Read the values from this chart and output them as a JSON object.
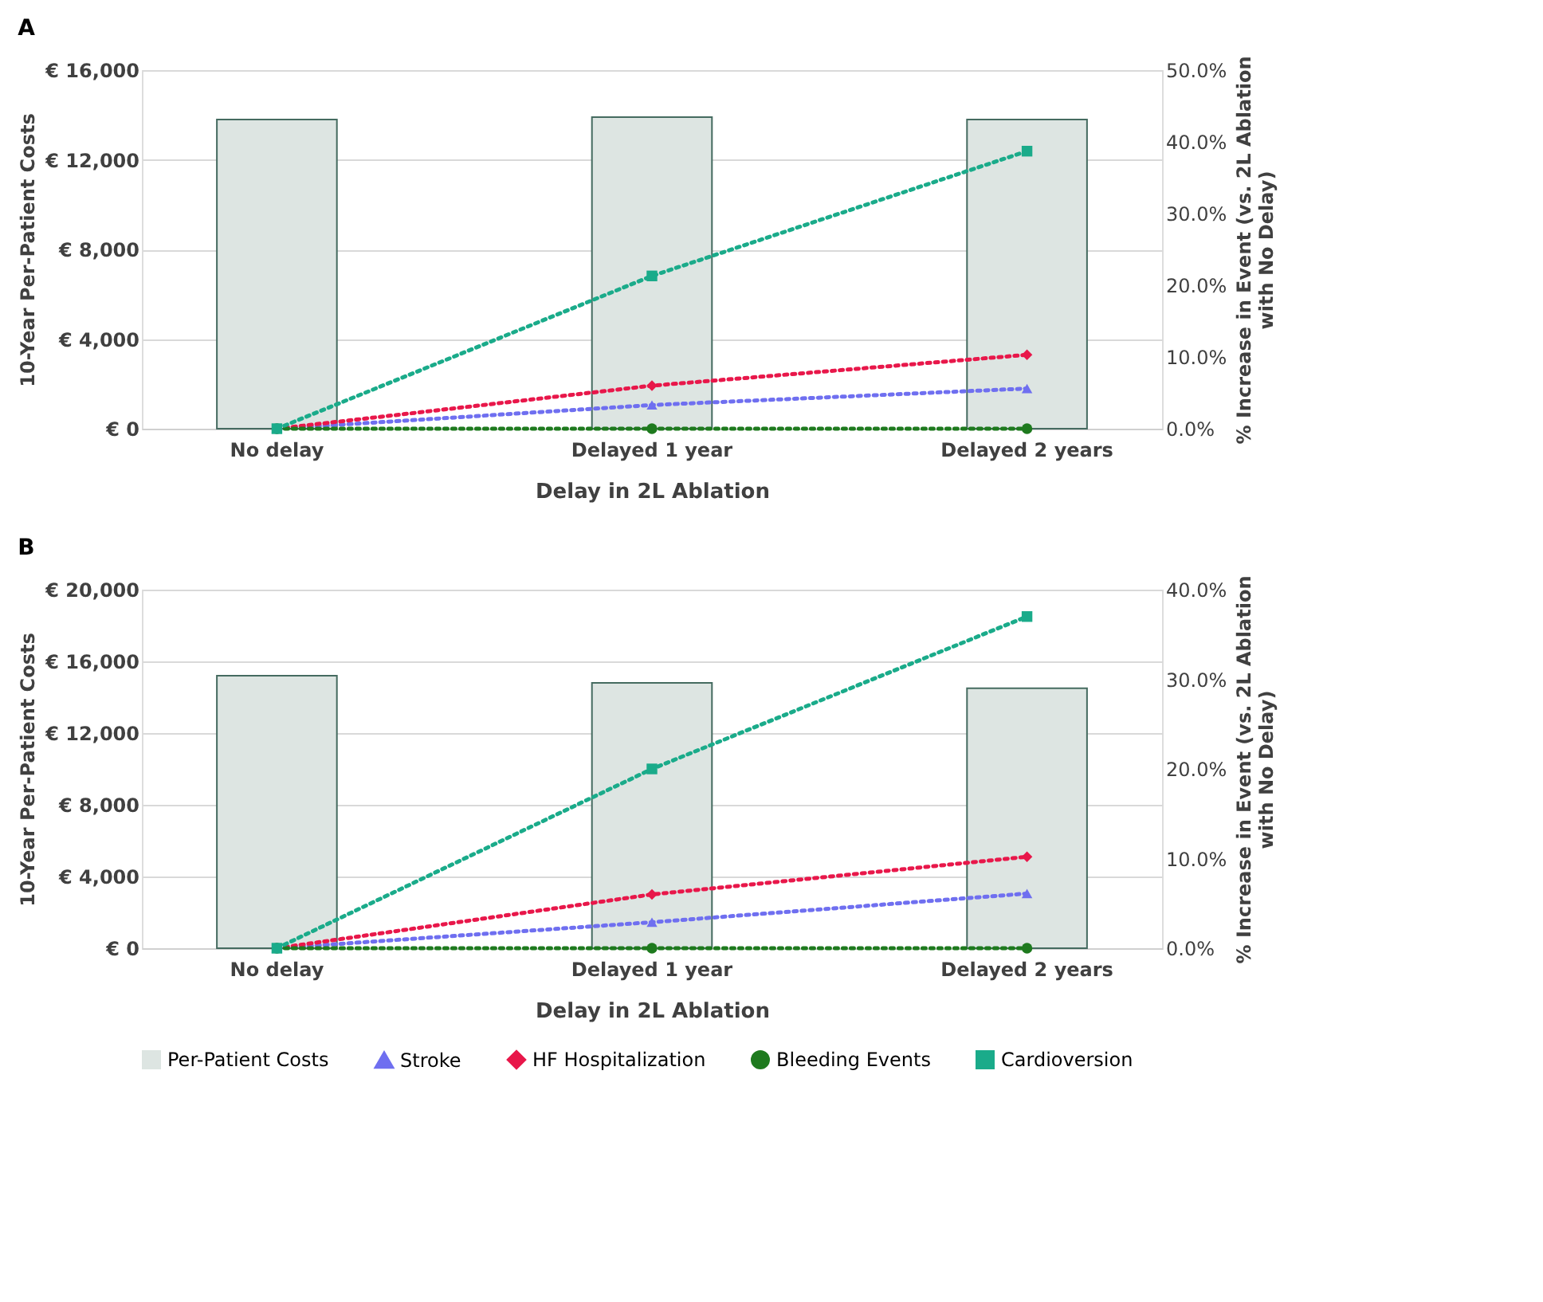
{
  "chart_data": [
    {
      "type": "bar",
      "title": "A",
      "xlabel": "Delay in 2L Ablation",
      "ylabel": "10-Year Per-Patient Costs",
      "y2label": "% Increase in Event (vs. 2L Ablation with No Delay)",
      "categories": [
        "No delay",
        "Delayed 1 year",
        "Delayed 2 years"
      ],
      "ylim": [
        0,
        16000
      ],
      "yticks": [
        {
          "value": 0,
          "label": "€ 0"
        },
        {
          "value": 4000,
          "label": "€ 4,000"
        },
        {
          "value": 8000,
          "label": "€ 8,000"
        },
        {
          "value": 12000,
          "label": "€ 12,000"
        },
        {
          "value": 16000,
          "label": "€ 16,000"
        }
      ],
      "y2lim": [
        0,
        50
      ],
      "y2ticks": [
        {
          "value": 0,
          "label": "0.0%"
        },
        {
          "value": 10,
          "label": "10.0%"
        },
        {
          "value": 20,
          "label": "20.0%"
        },
        {
          "value": 30,
          "label": "30.0%"
        },
        {
          "value": 40,
          "label": "40.0%"
        },
        {
          "value": 50,
          "label": "50.0%"
        }
      ],
      "grid": "y",
      "line_style": "dotted",
      "series": [
        {
          "color": "#dde5e2",
          "values": [
            13800,
            13900,
            13800
          ]
        },
        {
          "type": "line",
          "axis": "y2",
          "marker": "triangle",
          "color": "#6f6ff0",
          "values": [
            0,
            3.3,
            5.6
          ]
        },
        {
          "type": "line",
          "axis": "y2",
          "marker": "diamond",
          "color": "#e8174a",
          "values": [
            0,
            6.0,
            10.3
          ]
        },
        {
          "type": "line",
          "axis": "y2",
          "marker": "circle",
          "color": "#1e7a1e",
          "values": [
            0,
            0,
            0
          ]
        },
        {
          "type": "line",
          "axis": "y2",
          "marker": "square",
          "color": "#1aab8a",
          "values": [
            0,
            21.3,
            38.7
          ]
        }
      ]
    },
    {
      "type": "bar",
      "title": "B",
      "xlabel": "Delay in 2L Ablation",
      "ylabel": "10-Year Per-Patient Costs",
      "y2label": "% Increase in Event (vs. 2L Ablation with No Delay)",
      "categories": [
        "No delay",
        "Delayed 1 year",
        "Delayed 2 years"
      ],
      "ylim": [
        0,
        20000
      ],
      "yticks": [
        {
          "value": 0,
          "label": "€ 0"
        },
        {
          "value": 4000,
          "label": "€ 4,000"
        },
        {
          "value": 8000,
          "label": "€ 8,000"
        },
        {
          "value": 12000,
          "label": "€ 12,000"
        },
        {
          "value": 16000,
          "label": "€ 16,000"
        },
        {
          "value": 20000,
          "label": "€ 20,000"
        }
      ],
      "y2lim": [
        0,
        40
      ],
      "y2ticks": [
        {
          "value": 0,
          "label": "0.0%"
        },
        {
          "value": 10,
          "label": "10.0%"
        },
        {
          "value": 20,
          "label": "20.0%"
        },
        {
          "value": 30,
          "label": "30.0%"
        },
        {
          "value": 40,
          "label": "40.0%"
        }
      ],
      "grid": "y",
      "legend": "bottom",
      "line_style": "dotted",
      "series": [
        {
          "name": "Per-Patient Costs",
          "color": "#dde5e2",
          "values": [
            15200,
            14800,
            14500
          ]
        },
        {
          "name": "Stroke",
          "type": "line",
          "axis": "y2",
          "marker": "triangle",
          "color": "#6f6ff0",
          "values": [
            0,
            2.9,
            6.1
          ]
        },
        {
          "name": "HF Hospitalization",
          "type": "line",
          "axis": "y2",
          "marker": "diamond",
          "color": "#e8174a",
          "values": [
            0,
            6.0,
            10.2
          ]
        },
        {
          "name": "Bleeding Events",
          "type": "line",
          "axis": "y2",
          "marker": "circle",
          "color": "#1e7a1e",
          "values": [
            0,
            0,
            0
          ]
        },
        {
          "name": "Cardioversion",
          "type": "line",
          "axis": "y2",
          "marker": "square",
          "color": "#1aab8a",
          "values": [
            0,
            20.0,
            37.0
          ]
        }
      ]
    }
  ]
}
